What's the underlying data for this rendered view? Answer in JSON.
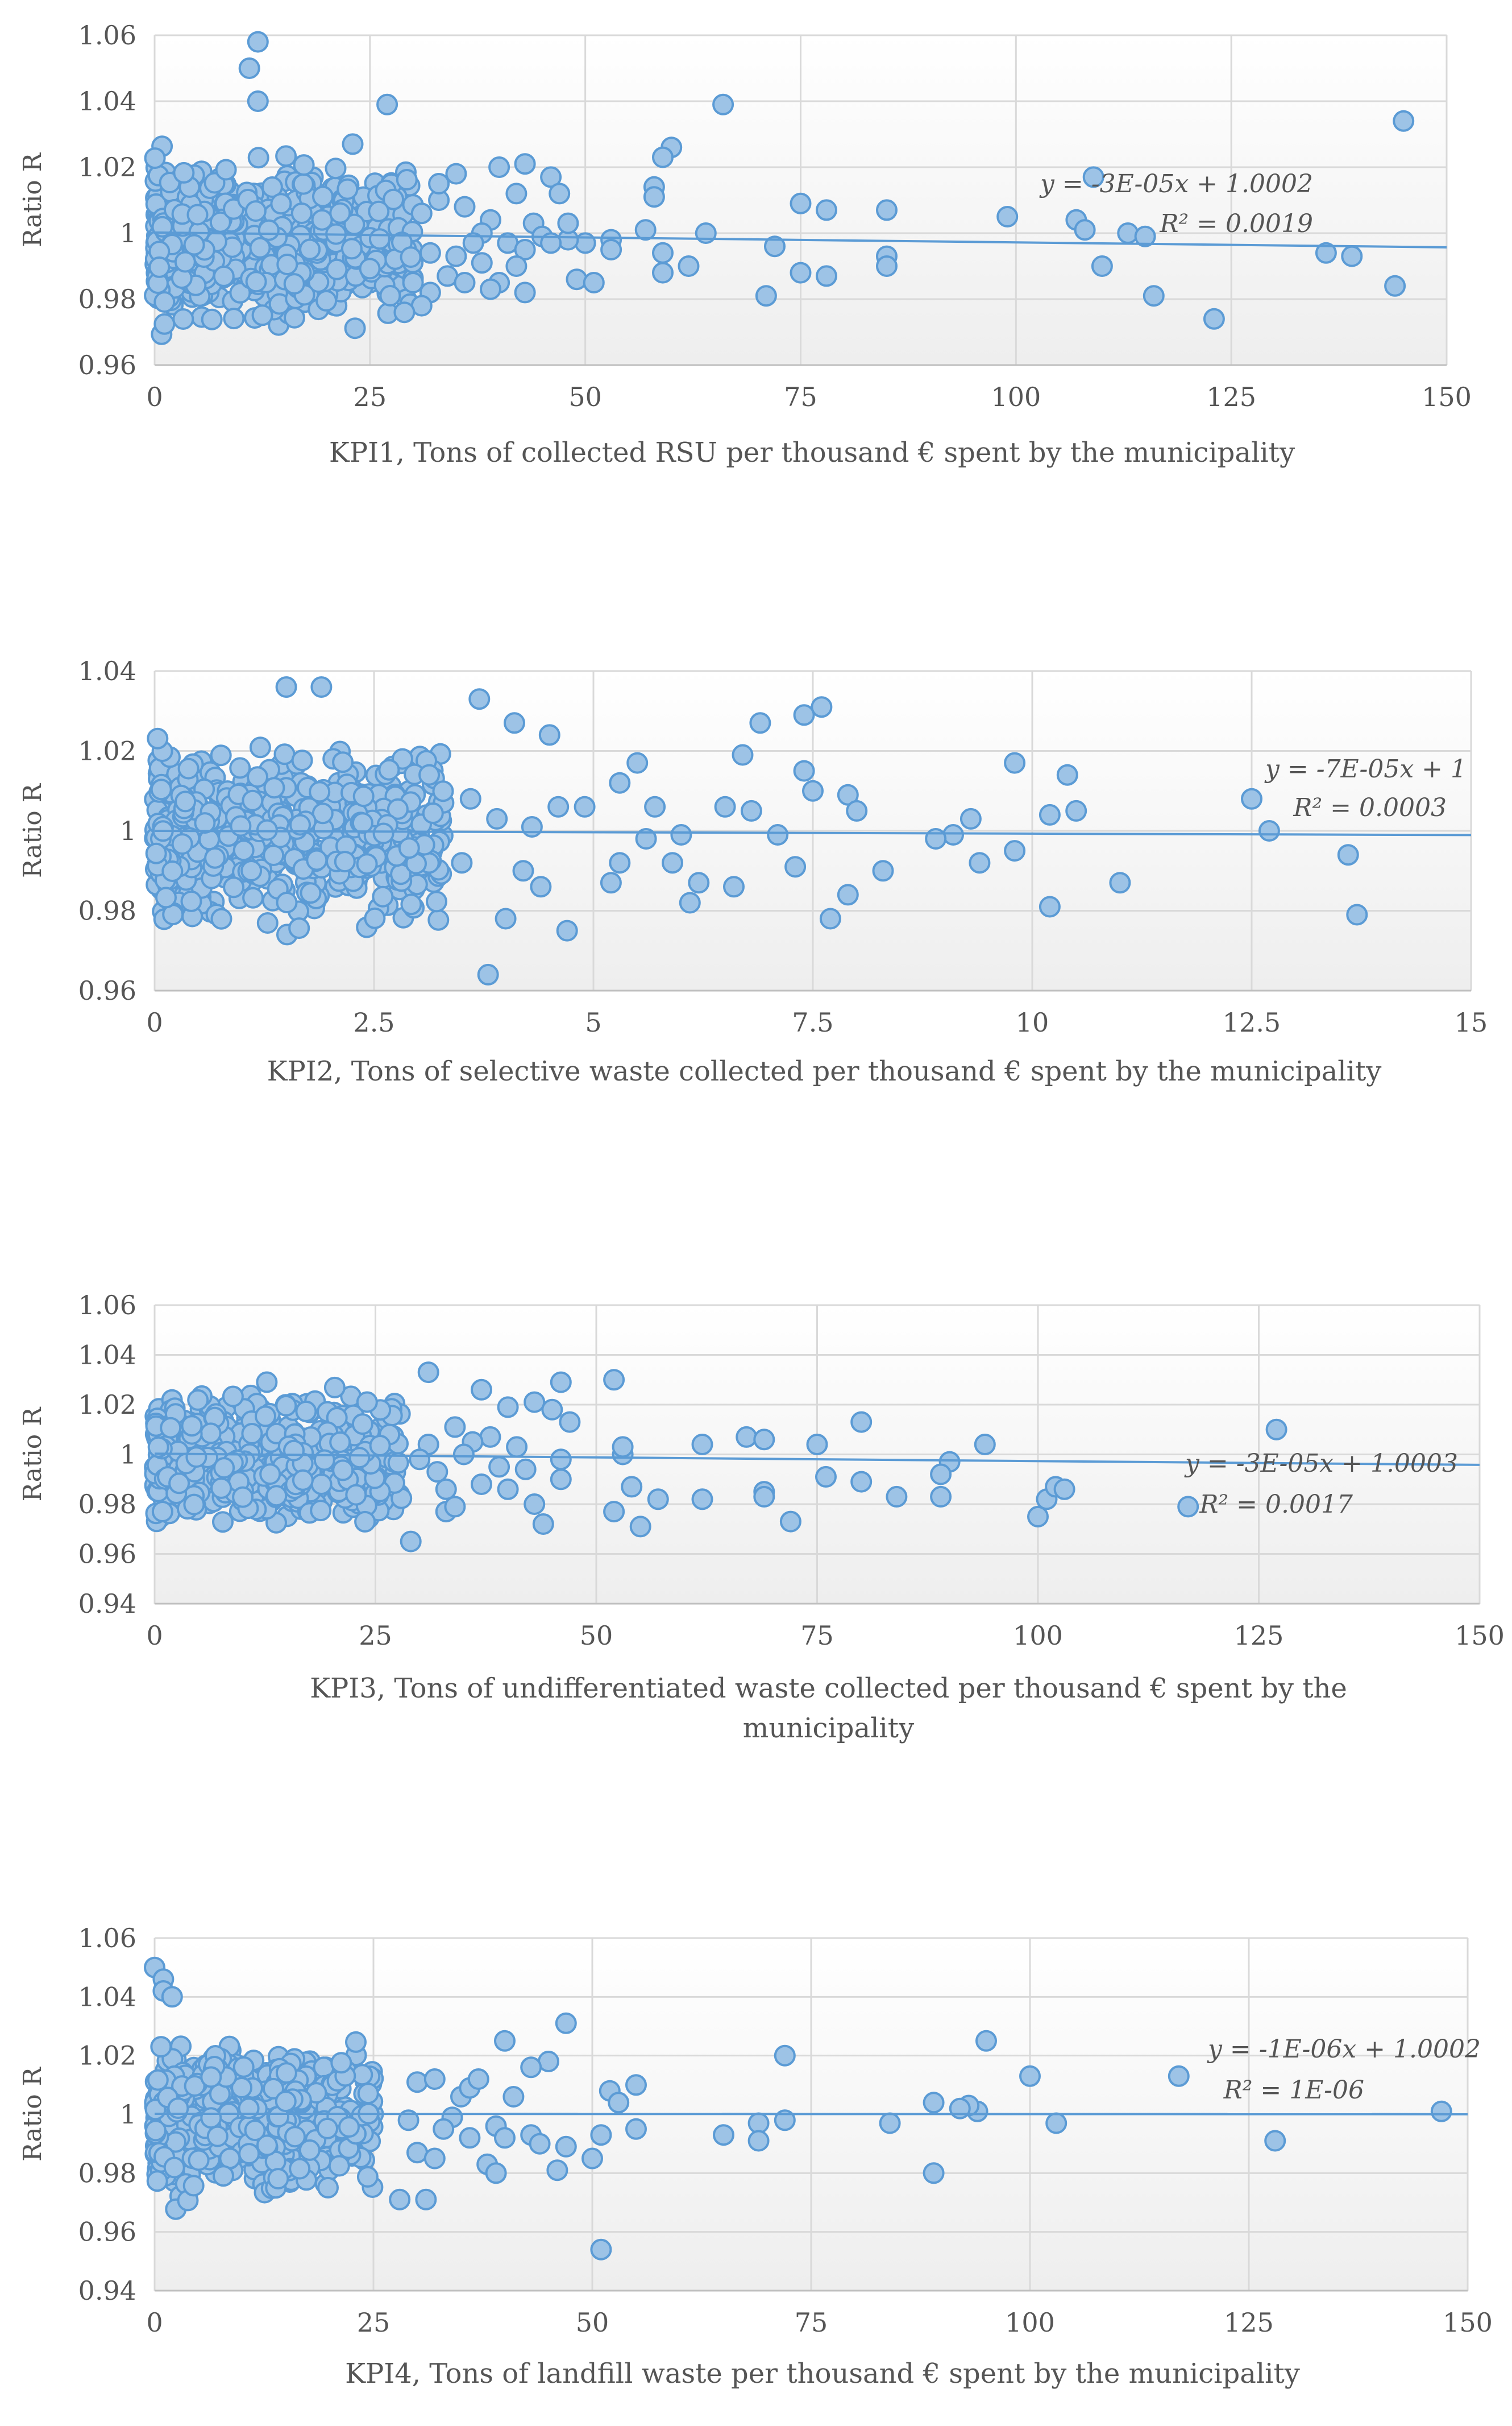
{
  "chart_data": [
    {
      "type": "scatter",
      "xlabel": [
        "KPI1, Tons of collected RSU per thousand € spent by the municipality"
      ],
      "ylabel": "Ratio R",
      "xlim": [
        0,
        150
      ],
      "ylim": [
        0.96,
        1.06
      ],
      "xticks": [
        0,
        25,
        50,
        75,
        100,
        125,
        150
      ],
      "xtick_labels": [
        "0",
        "25",
        "50",
        "75",
        "100",
        "125",
        "150"
      ],
      "yticks": [
        0.96,
        0.98,
        1.0,
        1.02,
        1.04,
        1.06
      ],
      "ytick_labels": [
        "0.96",
        "0.98",
        "1",
        "1.02",
        "1.04",
        "1.06"
      ],
      "trendline": {
        "slope": -3e-05,
        "intercept": 1.0002
      },
      "equation": "y = -3E-05x + 1.0002",
      "r2": "R² = 0.0019",
      "dense_cluster": {
        "x_range": [
          0,
          30
        ],
        "y_center": 0.997,
        "y_spread": 0.022,
        "count": 620,
        "seed": 11
      },
      "points": [
        [
          12,
          1.058
        ],
        [
          11,
          1.05
        ],
        [
          12,
          1.04
        ],
        [
          27,
          1.039
        ],
        [
          66,
          1.039
        ],
        [
          145,
          1.034
        ],
        [
          60,
          1.026
        ],
        [
          59,
          1.023
        ],
        [
          23,
          1.027
        ],
        [
          109,
          1.017
        ],
        [
          58,
          1.014
        ],
        [
          58,
          1.011
        ],
        [
          85,
          1.007
        ],
        [
          78,
          1.007
        ],
        [
          75,
          1.009
        ],
        [
          99,
          1.005
        ],
        [
          107,
          1.004
        ],
        [
          108,
          1.001
        ],
        [
          113,
          1.0
        ],
        [
          115,
          0.999
        ],
        [
          64,
          1.0
        ],
        [
          57,
          1.001
        ],
        [
          53,
          0.998
        ],
        [
          50,
          0.997
        ],
        [
          48,
          0.998
        ],
        [
          53,
          0.995
        ],
        [
          59,
          0.994
        ],
        [
          72,
          0.996
        ],
        [
          85,
          0.993
        ],
        [
          85,
          0.99
        ],
        [
          62,
          0.99
        ],
        [
          110,
          0.99
        ],
        [
          59,
          0.988
        ],
        [
          49,
          0.986
        ],
        [
          51,
          0.985
        ],
        [
          75,
          0.988
        ],
        [
          78,
          0.987
        ],
        [
          71,
          0.981
        ],
        [
          116,
          0.981
        ],
        [
          136,
          0.994
        ],
        [
          139,
          0.993
        ],
        [
          144,
          0.984
        ],
        [
          123,
          0.974
        ],
        [
          35,
          1.018
        ],
        [
          40,
          1.02
        ],
        [
          43,
          1.021
        ],
        [
          46,
          1.017
        ],
        [
          42,
          1.012
        ],
        [
          47,
          1.012
        ],
        [
          36,
          1.008
        ],
        [
          39,
          1.004
        ],
        [
          44,
          1.003
        ],
        [
          48,
          1.003
        ],
        [
          31,
          1.006
        ],
        [
          33,
          1.01
        ],
        [
          38,
          1.0
        ],
        [
          41,
          0.997
        ],
        [
          43,
          0.995
        ],
        [
          45,
          0.999
        ],
        [
          32,
          0.994
        ],
        [
          35,
          0.993
        ],
        [
          38,
          0.991
        ],
        [
          42,
          0.99
        ],
        [
          34,
          0.987
        ],
        [
          40,
          0.985
        ],
        [
          39,
          0.983
        ],
        [
          43,
          0.982
        ],
        [
          32,
          0.982
        ],
        [
          30,
          0.985
        ],
        [
          31,
          0.978
        ],
        [
          29,
          0.976
        ],
        [
          33,
          1.015
        ],
        [
          37,
          0.997
        ],
        [
          46,
          0.997
        ],
        [
          36,
          0.985
        ]
      ]
    },
    {
      "type": "scatter",
      "xlabel": [
        "KPI2, Tons of selective waste collected per thousand € spent by the municipality"
      ],
      "ylabel": "Ratio R",
      "xlim": [
        0,
        15
      ],
      "ylim": [
        0.96,
        1.04
      ],
      "xticks": [
        0,
        2.5,
        5,
        7.5,
        10,
        12.5,
        15
      ],
      "xtick_labels": [
        "0",
        "2.5",
        "5",
        "7.5",
        "10",
        "12.5",
        "15"
      ],
      "yticks": [
        0.96,
        0.98,
        1.0,
        1.02,
        1.04
      ],
      "ytick_labels": [
        "0.96",
        "0.98",
        "1",
        "1.02",
        "1.04"
      ],
      "trendline": {
        "slope": -7e-05,
        "intercept": 1.0
      },
      "equation": "y = -7E-05x + 1",
      "r2": "R² = 0.0003",
      "dense_cluster": {
        "x_range": [
          0,
          3.3
        ],
        "y_center": 0.999,
        "y_spread": 0.02,
        "count": 620,
        "seed": 23
      },
      "points": [
        [
          7.6,
          1.031
        ],
        [
          7.4,
          1.029
        ],
        [
          6.9,
          1.027
        ],
        [
          4.5,
          1.024
        ],
        [
          4.1,
          1.027
        ],
        [
          3.7,
          1.033
        ],
        [
          1.5,
          1.036
        ],
        [
          1.9,
          1.036
        ],
        [
          6.7,
          1.019
        ],
        [
          7.4,
          1.015
        ],
        [
          9.8,
          1.017
        ],
        [
          10.4,
          1.014
        ],
        [
          12.5,
          1.008
        ],
        [
          7.5,
          1.01
        ],
        [
          7.9,
          1.009
        ],
        [
          8.0,
          1.005
        ],
        [
          10.5,
          1.005
        ],
        [
          10.2,
          1.004
        ],
        [
          12.7,
          1.0
        ],
        [
          9.3,
          1.003
        ],
        [
          9.1,
          0.999
        ],
        [
          8.9,
          0.998
        ],
        [
          9.8,
          0.995
        ],
        [
          9.4,
          0.992
        ],
        [
          13.6,
          0.994
        ],
        [
          8.3,
          0.99
        ],
        [
          11.0,
          0.987
        ],
        [
          7.9,
          0.984
        ],
        [
          7.7,
          0.978
        ],
        [
          10.2,
          0.981
        ],
        [
          13.7,
          0.979
        ],
        [
          6.2,
          0.987
        ],
        [
          6.1,
          0.982
        ],
        [
          5.9,
          0.992
        ],
        [
          6.0,
          0.999
        ],
        [
          5.2,
          0.987
        ],
        [
          5.3,
          0.992
        ],
        [
          5.5,
          1.017
        ],
        [
          5.3,
          1.012
        ],
        [
          4.7,
          0.975
        ],
        [
          4.0,
          0.978
        ],
        [
          3.8,
          0.964
        ],
        [
          6.5,
          1.006
        ],
        [
          6.8,
          1.005
        ],
        [
          7.1,
          0.999
        ],
        [
          7.3,
          0.991
        ],
        [
          6.6,
          0.986
        ],
        [
          4.6,
          1.006
        ],
        [
          4.9,
          1.006
        ],
        [
          5.6,
          0.998
        ],
        [
          5.7,
          1.006
        ],
        [
          4.4,
          0.986
        ],
        [
          4.2,
          0.99
        ],
        [
          3.9,
          1.003
        ],
        [
          4.3,
          1.001
        ],
        [
          3.5,
          0.992
        ],
        [
          3.6,
          1.008
        ]
      ]
    },
    {
      "type": "scatter",
      "xlabel": [
        "KPI3, Tons of undifferentiated waste collected per thousand € spent by the",
        "municipality"
      ],
      "ylabel": "Ratio R",
      "xlim": [
        0,
        150
      ],
      "ylim": [
        0.94,
        1.06
      ],
      "xticks": [
        0,
        25,
        50,
        75,
        100,
        125,
        150
      ],
      "xtick_labels": [
        "0",
        "25",
        "50",
        "75",
        "100",
        "125",
        "150"
      ],
      "yticks": [
        0.94,
        0.96,
        0.98,
        1.0,
        1.02,
        1.04,
        1.06
      ],
      "ytick_labels": [
        "0.94",
        "0.96",
        "0.98",
        "1",
        "1.02",
        "1.04",
        "1.06"
      ],
      "trendline": {
        "slope": -3e-05,
        "intercept": 1.0003
      },
      "equation": "y = -3E-05x + 1.0003",
      "r2": "R² = 0.0017",
      "dense_cluster": {
        "x_range": [
          0,
          28
        ],
        "y_center": 0.998,
        "y_spread": 0.024,
        "count": 560,
        "seed": 37
      },
      "points": [
        [
          127,
          1.01
        ],
        [
          80,
          1.013
        ],
        [
          67,
          1.007
        ],
        [
          69,
          1.006
        ],
        [
          75,
          1.004
        ],
        [
          62,
          1.004
        ],
        [
          94,
          1.004
        ],
        [
          90,
          0.997
        ],
        [
          89,
          0.992
        ],
        [
          80,
          0.989
        ],
        [
          76,
          0.991
        ],
        [
          69,
          0.985
        ],
        [
          69,
          0.983
        ],
        [
          84,
          0.983
        ],
        [
          89,
          0.983
        ],
        [
          62,
          0.982
        ],
        [
          57,
          0.982
        ],
        [
          72,
          0.973
        ],
        [
          100,
          0.975
        ],
        [
          101,
          0.982
        ],
        [
          102,
          0.987
        ],
        [
          103,
          0.986
        ],
        [
          117,
          0.979
        ],
        [
          52,
          1.03
        ],
        [
          46,
          1.029
        ],
        [
          53,
          1.0
        ],
        [
          53,
          1.003
        ],
        [
          54,
          0.987
        ],
        [
          52,
          0.977
        ],
        [
          55,
          0.971
        ],
        [
          44,
          0.972
        ],
        [
          43,
          0.98
        ],
        [
          46,
          0.998
        ],
        [
          46,
          0.99
        ],
        [
          29,
          0.965
        ],
        [
          33,
          0.977
        ],
        [
          34,
          0.979
        ],
        [
          40,
          1.019
        ],
        [
          43,
          1.021
        ],
        [
          45,
          1.018
        ],
        [
          47,
          1.013
        ],
        [
          38,
          1.007
        ],
        [
          41,
          1.003
        ],
        [
          36,
          1.005
        ],
        [
          39,
          0.995
        ],
        [
          42,
          0.994
        ],
        [
          37,
          0.988
        ],
        [
          40,
          0.986
        ],
        [
          32,
          0.993
        ],
        [
          31,
          1.004
        ],
        [
          34,
          1.011
        ],
        [
          31,
          1.033
        ],
        [
          37,
          1.026
        ],
        [
          35,
          1.0
        ],
        [
          30,
          0.998
        ],
        [
          33,
          0.986
        ]
      ]
    },
    {
      "type": "scatter",
      "xlabel": [
        "KPI4, Tons of landfill waste per thousand € spent by the municipality"
      ],
      "ylabel": "Ratio R",
      "xlim": [
        0,
        150
      ],
      "ylim": [
        0.94,
        1.06
      ],
      "xticks": [
        0,
        25,
        50,
        75,
        100,
        125,
        150
      ],
      "xtick_labels": [
        "0",
        "25",
        "50",
        "75",
        "100",
        "125",
        "150"
      ],
      "yticks": [
        0.94,
        0.96,
        0.98,
        1.0,
        1.02,
        1.04,
        1.06
      ],
      "ytick_labels": [
        "0.94",
        "0.96",
        "0.98",
        "1",
        "1.02",
        "1.04",
        "1.06"
      ],
      "trendline": {
        "slope": -1e-06,
        "intercept": 1.0002
      },
      "equation": "y = -1E-06x + 1.0002",
      "r2": "R² = 1E-06",
      "dense_cluster": {
        "x_range": [
          0,
          25
        ],
        "y_center": 0.999,
        "y_spread": 0.024,
        "count": 560,
        "seed": 53
      },
      "points": [
        [
          0,
          1.05
        ],
        [
          1,
          1.046
        ],
        [
          1,
          1.042
        ],
        [
          2,
          1.04
        ],
        [
          95,
          1.025
        ],
        [
          72,
          1.02
        ],
        [
          100,
          1.013
        ],
        [
          117,
          1.013
        ],
        [
          147,
          1.001
        ],
        [
          128,
          0.991
        ],
        [
          103,
          0.997
        ],
        [
          94,
          1.001
        ],
        [
          93,
          1.003
        ],
        [
          92,
          1.002
        ],
        [
          89,
          1.004
        ],
        [
          84,
          0.997
        ],
        [
          72,
          0.998
        ],
        [
          69,
          0.997
        ],
        [
          69,
          0.991
        ],
        [
          65,
          0.993
        ],
        [
          89,
          0.98
        ],
        [
          47,
          1.031
        ],
        [
          52,
          1.008
        ],
        [
          53,
          1.004
        ],
        [
          55,
          1.01
        ],
        [
          55,
          0.995
        ],
        [
          51,
          0.993
        ],
        [
          50,
          0.985
        ],
        [
          47,
          0.989
        ],
        [
          51,
          0.954
        ],
        [
          46,
          0.981
        ],
        [
          43,
          0.993
        ],
        [
          44,
          0.99
        ],
        [
          45,
          1.018
        ],
        [
          43,
          1.016
        ],
        [
          40,
          1.025
        ],
        [
          41,
          1.006
        ],
        [
          39,
          0.996
        ],
        [
          40,
          0.992
        ],
        [
          38,
          0.983
        ],
        [
          39,
          0.98
        ],
        [
          31,
          0.971
        ],
        [
          28,
          0.971
        ],
        [
          30,
          1.011
        ],
        [
          32,
          1.012
        ],
        [
          35,
          1.006
        ],
        [
          36,
          1.009
        ],
        [
          34,
          0.999
        ],
        [
          33,
          0.995
        ],
        [
          30,
          0.987
        ],
        [
          32,
          0.985
        ],
        [
          37,
          1.012
        ],
        [
          36,
          0.992
        ],
        [
          29,
          0.998
        ]
      ]
    }
  ]
}
